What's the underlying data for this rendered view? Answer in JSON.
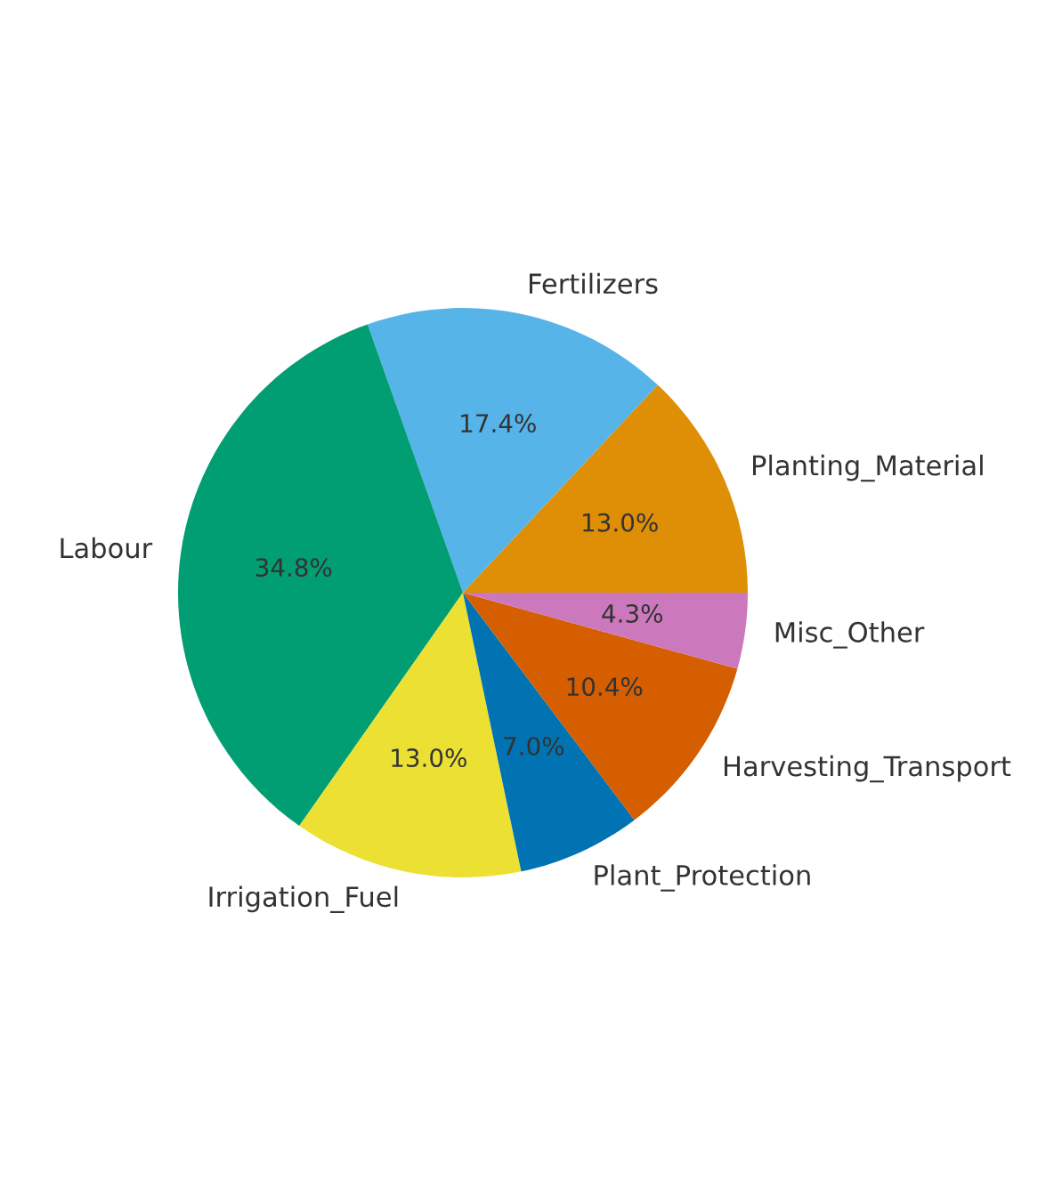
{
  "chart_data": {
    "type": "pie",
    "categories": [
      "Planting_Material",
      "Fertilizers",
      "Labour",
      "Irrigation_Fuel",
      "Plant_Protection",
      "Harvesting_Transport",
      "Misc_Other"
    ],
    "values": [
      13.0,
      17.4,
      34.8,
      13.0,
      7.0,
      10.4,
      4.3
    ],
    "value_labels": [
      "13.0%",
      "17.4%",
      "34.8%",
      "13.0%",
      "7.0%",
      "10.4%",
      "4.3%"
    ],
    "colors": [
      "#de8f05",
      "#56b4e9",
      "#029e73",
      "#ece133",
      "#0173b2",
      "#d55e00",
      "#cc78bc"
    ]
  }
}
